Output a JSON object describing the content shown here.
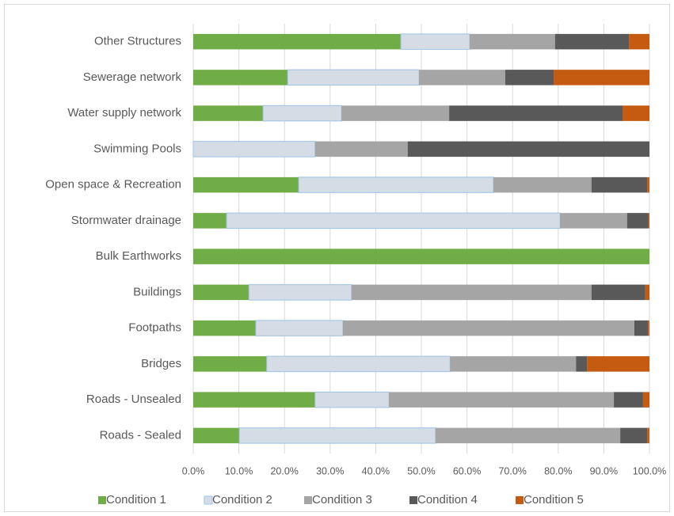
{
  "chart_data": {
    "type": "stacked_barh",
    "categories": [
      "Other Structures",
      "Sewerage network",
      "Water supply network",
      "Swimming Pools",
      "Open space & Recreation",
      "Stormwater drainage",
      "Bulk Earthworks",
      "Buildings",
      "Footpaths",
      "Bridges",
      "Roads - Unsealed",
      "Roads - Sealed"
    ],
    "series": [
      {
        "name": "Condition 1",
        "color": "#70ad47",
        "values": [
          45.5,
          20.7,
          15.3,
          0,
          23.1,
          7.3,
          100,
          12.2,
          13.7,
          16.1,
          26.7,
          10.1
        ]
      },
      {
        "name": "Condition 2",
        "color": "#d6dce5",
        "edgecolor": "#9dc3e6",
        "values": [
          15.1,
          28.8,
          17.2,
          26.7,
          42.7,
          73.1,
          0,
          22.5,
          19.1,
          40.2,
          16.2,
          43.0
        ]
      },
      {
        "name": "Condition 3",
        "color": "#a5a5a5",
        "values": [
          18.7,
          18.9,
          23.6,
          20.3,
          21.5,
          14.7,
          0,
          52.6,
          63.9,
          27.6,
          49.3,
          40.5
        ]
      },
      {
        "name": "Condition 4",
        "color": "#595959",
        "values": [
          16.2,
          10.6,
          38.0,
          53.0,
          12.2,
          4.7,
          0,
          11.8,
          3.0,
          2.4,
          6.4,
          5.9
        ]
      },
      {
        "name": "Condition 5",
        "color": "#c55a11",
        "values": [
          4.5,
          21.0,
          5.9,
          0,
          0.5,
          0.2,
          0,
          0.9,
          0.3,
          13.7,
          1.4,
          0.5
        ]
      }
    ],
    "xlim": [
      0,
      100
    ],
    "xticks": [
      {
        "value": 0,
        "label": "0.0%"
      },
      {
        "value": 10,
        "label": "10.0%"
      },
      {
        "value": 20,
        "label": "20.0%"
      },
      {
        "value": 30,
        "label": "30.0%"
      },
      {
        "value": 40,
        "label": "40.0%"
      },
      {
        "value": 50,
        "label": "50.0%"
      },
      {
        "value": 60,
        "label": "60.0%"
      },
      {
        "value": 70,
        "label": "70.0%"
      },
      {
        "value": 80,
        "label": "80.0%"
      },
      {
        "value": 90,
        "label": "90.0%"
      },
      {
        "value": 100,
        "label": "100.0%"
      }
    ],
    "grid": true,
    "legend": "bottom"
  }
}
